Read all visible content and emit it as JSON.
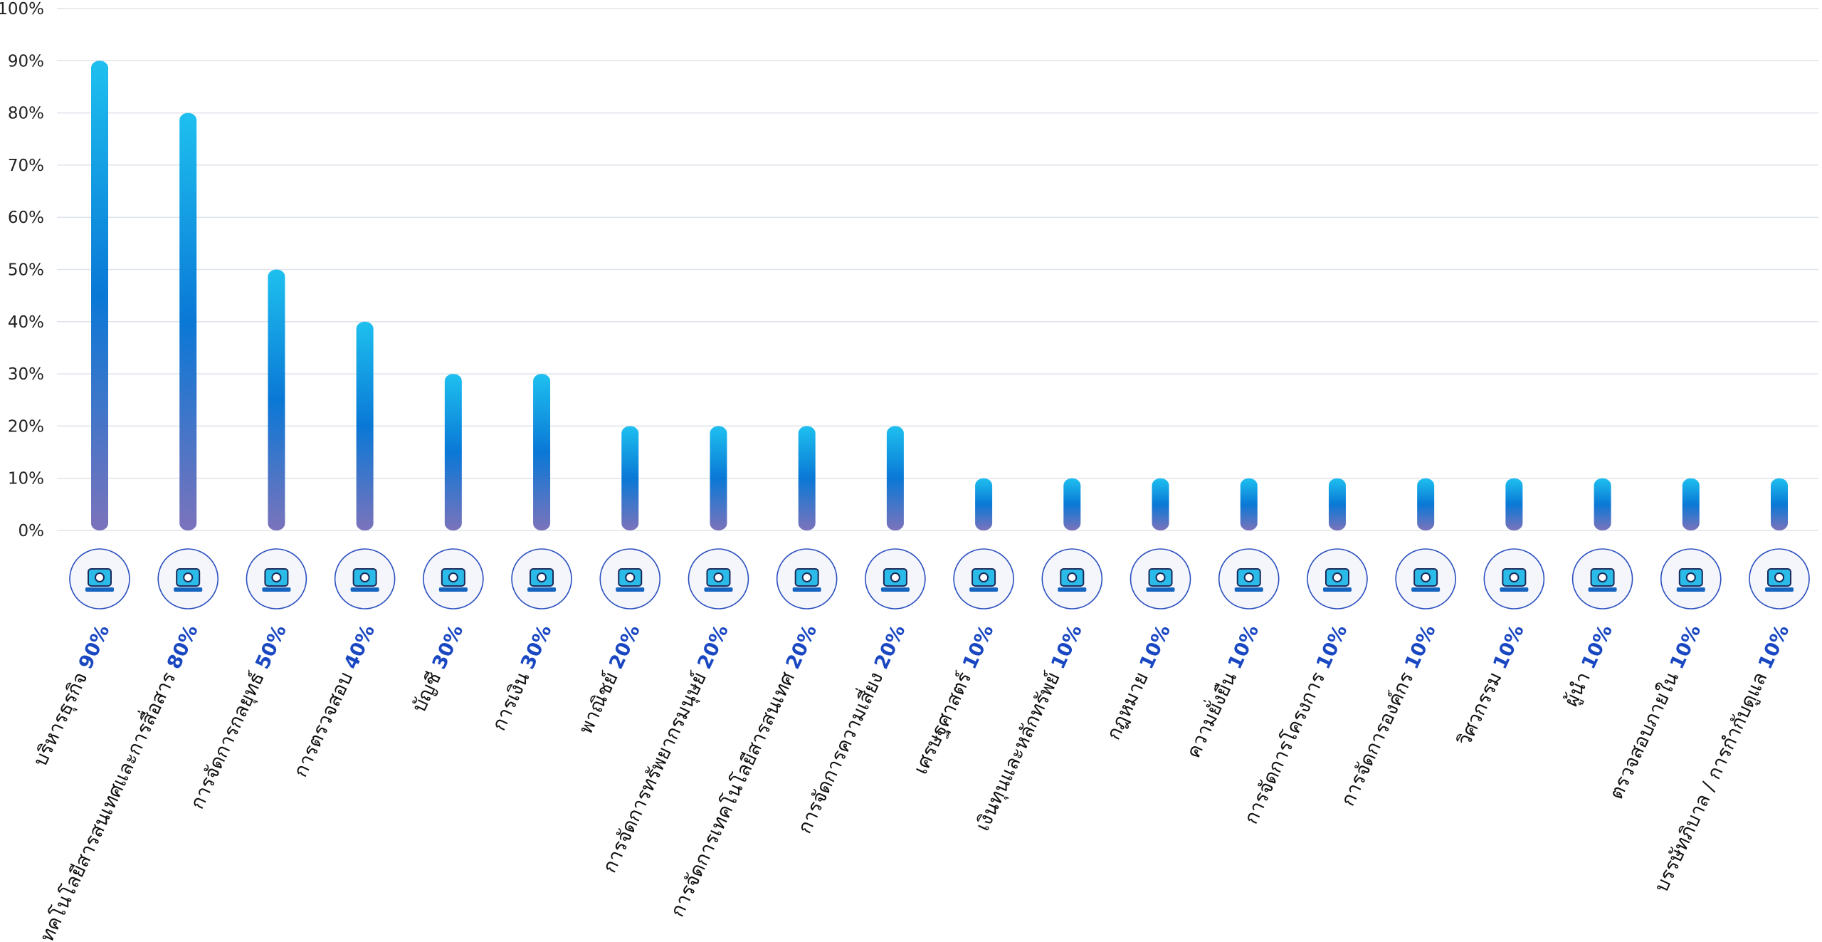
{
  "chart_data": {
    "type": "bar",
    "ylim": [
      0,
      100
    ],
    "y_ticks": [
      0,
      10,
      20,
      30,
      40,
      50,
      60,
      70,
      80,
      90,
      100
    ],
    "y_tick_suffix": "%",
    "grid": true,
    "colors": {
      "bar_top": "#1ec0ef",
      "bar_mid": "#0a78d6",
      "bar_bottom": "#7b73bb",
      "value_text": "#1947c2",
      "icon_ring": "#2a4fbf"
    },
    "categories": [
      "บริหารธุรกิจ",
      "เทคโนโลยีสารสนเทศและการสื่อสาร",
      "การจัดการกลยุทธ์",
      "การตรวจสอบ",
      "บัญชี",
      "การเงิน",
      "พาณิชย์",
      "การจัดการทรัพยากรมนุษย์",
      "การจัดการเทคโนโลยีสารสนเทศ",
      "การจัดการความเสี่ยง",
      "เศรษฐศาสตร์",
      "เงินทุนและหลักทรัพย์",
      "กฎหมาย",
      "ความยั่งยืน",
      "การจัดการโครงการ",
      "การจัดการองค์กร",
      "วิศวกรรม",
      "ผู้นำ",
      "ตรวจสอบภายใน",
      "บรรษัทภิบาล / การกำกับดูแล"
    ],
    "values": [
      90,
      80,
      50,
      40,
      30,
      30,
      20,
      20,
      20,
      20,
      10,
      10,
      10,
      10,
      10,
      10,
      10,
      10,
      10,
      10
    ],
    "value_labels": [
      "90%",
      "80%",
      "50%",
      "40%",
      "30%",
      "30%",
      "20%",
      "20%",
      "20%",
      "20%",
      "10%",
      "10%",
      "10%",
      "10%",
      "10%",
      "10%",
      "10%",
      "10%",
      "10%",
      "10%"
    ],
    "icons": [
      "hand-gear-icon",
      "monitor-network-icon",
      "gear-hand-icon",
      "clipboard-search-icon",
      "calculator-invoice-icon",
      "money-stack-icon",
      "store-building-icon",
      "org-chart-icon",
      "tech-gear-person-icon",
      "risk-balance-icon",
      "globe-chart-icon",
      "document-coin-icon",
      "scales-justice-icon",
      "hands-earth-icon",
      "document-gear-icon",
      "office-building-icon",
      "hardhat-gear-icon",
      "climb-flag-icon",
      "gear-magnifier-icon",
      "government-building-icon"
    ]
  }
}
